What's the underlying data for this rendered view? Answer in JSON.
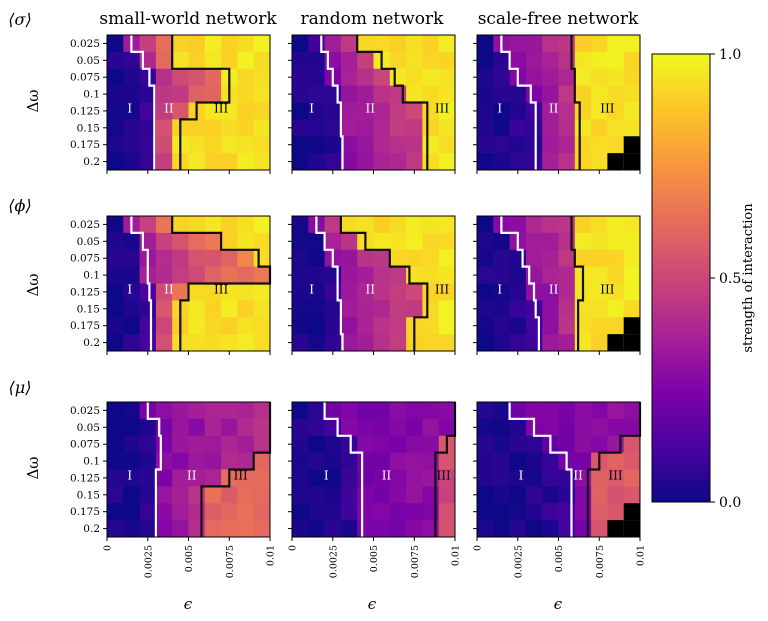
{
  "chart_data": {
    "type": "heatmap",
    "columns": [
      "small-world network",
      "random network",
      "scale-free network"
    ],
    "rows": [
      {
        "label": "⟨σ⟩",
        "ylabel": "Δω"
      },
      {
        "label": "⟨ϕ⟩",
        "ylabel": "Δω"
      },
      {
        "label": "⟨μ⟩",
        "ylabel": "Δω"
      }
    ],
    "x": {
      "label": "ϵ",
      "range": [
        0,
        0.01
      ],
      "ticks": [
        "0",
        "0.0025",
        "0.005",
        "0.0075",
        "0.01"
      ]
    },
    "y": {
      "label": "Δω",
      "range": [
        0.025,
        0.2
      ],
      "ticks": [
        "0.025",
        "0.05",
        "0.075",
        "0.1",
        "0.125",
        "0.15",
        "0.175",
        "0.2"
      ]
    },
    "colorbar": {
      "label": "strength of interaction",
      "range": [
        0,
        1
      ],
      "ticks": [
        "0.0",
        "0.5",
        "1.0"
      ],
      "colormap": "plasma"
    },
    "region_labels": [
      "I",
      "II",
      "III"
    ],
    "panels": [
      {
        "row": 0,
        "col": 0,
        "white_boundary": [
          0.0015,
          0.0022,
          0.0026,
          0.0029,
          0.0029,
          0.0029,
          0.0029,
          0.0029
        ],
        "black_boundary": [
          0.004,
          0.004,
          0.0075,
          0.0075,
          0.0055,
          0.0045,
          0.0045,
          0.0045
        ],
        "III_level": 0.95,
        "mid_level": 0.72,
        "region_label_x": {
          "I": 0.0014,
          "II": 0.0038,
          "III": 0.007
        },
        "black_cells": []
      },
      {
        "row": 0,
        "col": 1,
        "white_boundary": [
          0.0018,
          0.0022,
          0.0025,
          0.0028,
          0.003,
          0.003,
          0.0031,
          0.0031
        ],
        "black_boundary": [
          0.004,
          0.0055,
          0.0063,
          0.0068,
          0.0083,
          0.0083,
          0.0083,
          0.0083
        ],
        "III_level": 0.95,
        "mid_level": 0.5,
        "region_label_x": {
          "I": 0.0012,
          "II": 0.0048,
          "III": 0.0092
        },
        "black_cells": []
      },
      {
        "row": 0,
        "col": 2,
        "white_boundary": [
          0.0015,
          0.002,
          0.0025,
          0.0033,
          0.0036,
          0.0036,
          0.0036,
          0.0036
        ],
        "black_boundary": [
          0.0058,
          0.0058,
          0.006,
          0.006,
          0.0063,
          0.0063,
          0.0063,
          0.0063
        ],
        "III_level": 0.95,
        "mid_level": 0.45,
        "region_label_x": {
          "I": 0.0014,
          "II": 0.0047,
          "III": 0.008
        },
        "black_cells": [
          [
            6,
            9
          ],
          [
            7,
            8
          ],
          [
            7,
            9
          ]
        ]
      },
      {
        "row": 1,
        "col": 0,
        "white_boundary": [
          0.0015,
          0.0022,
          0.0025,
          0.0025,
          0.0026,
          0.0027,
          0.0027,
          0.0027
        ],
        "black_boundary": [
          0.004,
          0.007,
          0.0093,
          0.01,
          0.005,
          0.0045,
          0.0045,
          0.0045
        ],
        "III_level": 0.95,
        "mid_level": 0.72,
        "region_label_x": {
          "I": 0.0014,
          "II": 0.0038,
          "III": 0.007
        },
        "black_cells": []
      },
      {
        "row": 1,
        "col": 1,
        "white_boundary": [
          0.0015,
          0.002,
          0.0025,
          0.0028,
          0.0028,
          0.003,
          0.003,
          0.0031
        ],
        "black_boundary": [
          0.003,
          0.0045,
          0.006,
          0.0072,
          0.0083,
          0.0083,
          0.0075,
          0.0075
        ],
        "III_level": 0.95,
        "mid_level": 0.5,
        "region_label_x": {
          "I": 0.0012,
          "II": 0.0048,
          "III": 0.0092
        },
        "black_cells": []
      },
      {
        "row": 1,
        "col": 2,
        "white_boundary": [
          0.0015,
          0.0025,
          0.0028,
          0.0032,
          0.0035,
          0.0036,
          0.0038,
          0.0038
        ],
        "black_boundary": [
          0.0058,
          0.0058,
          0.006,
          0.0065,
          0.0065,
          0.0062,
          0.0062,
          0.0062
        ],
        "III_level": 0.95,
        "mid_level": 0.45,
        "region_label_x": {
          "I": 0.0014,
          "II": 0.0047,
          "III": 0.008
        },
        "black_cells": [
          [
            6,
            9
          ],
          [
            7,
            8
          ],
          [
            7,
            9
          ]
        ]
      },
      {
        "row": 2,
        "col": 0,
        "white_boundary": [
          0.0025,
          0.0032,
          0.0033,
          0.0033,
          0.003,
          0.003,
          0.003,
          0.003
        ],
        "black_boundary": [
          0.01,
          0.01,
          0.01,
          0.009,
          0.0075,
          0.0058,
          0.0058,
          0.0058
        ],
        "III_level": 0.62,
        "mid_level": 0.42,
        "region_label_x": {
          "I": 0.0014,
          "II": 0.0052,
          "III": 0.0082
        },
        "black_cells": []
      },
      {
        "row": 2,
        "col": 1,
        "white_boundary": [
          0.002,
          0.0028,
          0.0036,
          0.0043,
          0.0043,
          0.0043,
          0.0043,
          0.0043
        ],
        "black_boundary": [
          0.01,
          0.01,
          0.0095,
          0.0088,
          0.0088,
          0.0088,
          0.0088,
          0.0088
        ],
        "III_level": 0.52,
        "mid_level": 0.3,
        "region_label_x": {
          "I": 0.0021,
          "II": 0.0058,
          "III": 0.0093
        },
        "black_cells": []
      },
      {
        "row": 2,
        "col": 2,
        "white_boundary": [
          0.002,
          0.0035,
          0.0045,
          0.0055,
          0.0058,
          0.0058,
          0.0058,
          0.0058
        ],
        "black_boundary": [
          0.01,
          0.01,
          0.0088,
          0.0075,
          0.0068,
          0.0068,
          0.0068,
          0.0068
        ],
        "III_level": 0.58,
        "mid_level": 0.3,
        "region_label_x": {
          "I": 0.0027,
          "II": 0.0062,
          "III": 0.0085
        },
        "black_cells": [
          [
            6,
            9
          ],
          [
            7,
            8
          ],
          [
            7,
            9
          ]
        ]
      }
    ]
  }
}
